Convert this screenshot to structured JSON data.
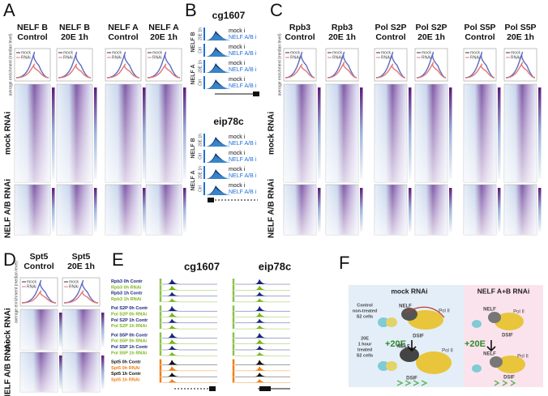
{
  "panel_a": {
    "label": "A",
    "columns": [
      [
        "NELF B",
        "Control"
      ],
      [
        "NELF B",
        "20E 1h"
      ],
      [
        "NELF A",
        "Control"
      ],
      [
        "NELF A",
        "20E 1h"
      ]
    ],
    "legend": [
      "mock",
      "RNAi"
    ],
    "profile_axis_label": "average enrichment (median level)",
    "rows": [
      "mock RNAi",
      "NELF A/B RNAi"
    ]
  },
  "panel_b": {
    "label": "B",
    "loci": [
      {
        "name": "cg1607",
        "groups": [
          "NELF B",
          "NELF A"
        ]
      },
      {
        "name": "eip78c",
        "groups": [
          "NELF B",
          "NELF A"
        ]
      }
    ],
    "conditions": [
      "20E 1h",
      "Ctrl"
    ],
    "legend": [
      "mock i",
      "NELF A/B i"
    ]
  },
  "panel_c": {
    "label": "C",
    "columns": [
      [
        "Rpb3",
        "Control"
      ],
      [
        "Rpb3",
        "20E 1h"
      ],
      [
        "Pol S2P",
        "Control"
      ],
      [
        "Pol S2P",
        "20E 1h"
      ],
      [
        "Pol S5P",
        "Control"
      ],
      [
        "Pol S5P",
        "20E 1h"
      ]
    ],
    "legend": [
      "mock",
      "RNAi"
    ],
    "profile_axis_label": "average enrichment (median level)",
    "rows": [
      "mock RNAi",
      "NELF A/B RNAi"
    ]
  },
  "panel_d": {
    "label": "D",
    "columns": [
      [
        "Spt5",
        "Control"
      ],
      [
        "Spt5",
        "20E 1h"
      ]
    ],
    "legend": [
      "mock",
      "RNAi"
    ],
    "profile_axis_label": "average enrichment (median level)",
    "rows": [
      "mock RNAi",
      "NELF A/B RNAi"
    ]
  },
  "panel_e": {
    "label": "E",
    "loci": [
      "cg1607",
      "eip78c"
    ],
    "tracks": [
      {
        "name": "Rpb3  0h Contr",
        "color": "#1a237e"
      },
      {
        "name": "Rpb3  0h RNAi",
        "color": "#7cb518"
      },
      {
        "name": "Rpb3  1h Contr",
        "color": "#1a237e"
      },
      {
        "name": "Rpb3  1h RNAi",
        "color": "#7cb518"
      },
      {
        "name": "Pol S2P 0h Contr",
        "color": "#1a237e"
      },
      {
        "name": "Pol S2P 0h RNAi",
        "color": "#7cb518"
      },
      {
        "name": "Pol S2P 1h Contr",
        "color": "#1a237e"
      },
      {
        "name": "Pol S2P 1h RNAi",
        "color": "#7cb518"
      },
      {
        "name": "Pol S5P 0h Contr",
        "color": "#1a237e"
      },
      {
        "name": "Pol S5P 0h RNAi",
        "color": "#7cb518"
      },
      {
        "name": "Pol S5P 1h Contr",
        "color": "#1a237e"
      },
      {
        "name": "Pol S5P 1h RNAi",
        "color": "#7cb518"
      },
      {
        "name": "Spt5  0h Contr",
        "color": "#111111"
      },
      {
        "name": "Spt5  0h RNAi",
        "color": "#f07f13"
      },
      {
        "name": "Spt5  1h Contr",
        "color": "#111111"
      },
      {
        "name": "Spt5  1h RNAi",
        "color": "#f07f13"
      }
    ]
  },
  "panel_f": {
    "label": "F",
    "headers": [
      "mock RNAi",
      "NELF A+B RNAi"
    ],
    "states": [
      [
        "Control",
        "non-treated",
        "S2 cells"
      ],
      [
        "20E",
        "1 hour",
        "treated",
        "S2 cells"
      ]
    ],
    "treatment": "+20E",
    "nelf": "NELF",
    "pol": "Pol II",
    "dsif": "DSIF"
  }
}
